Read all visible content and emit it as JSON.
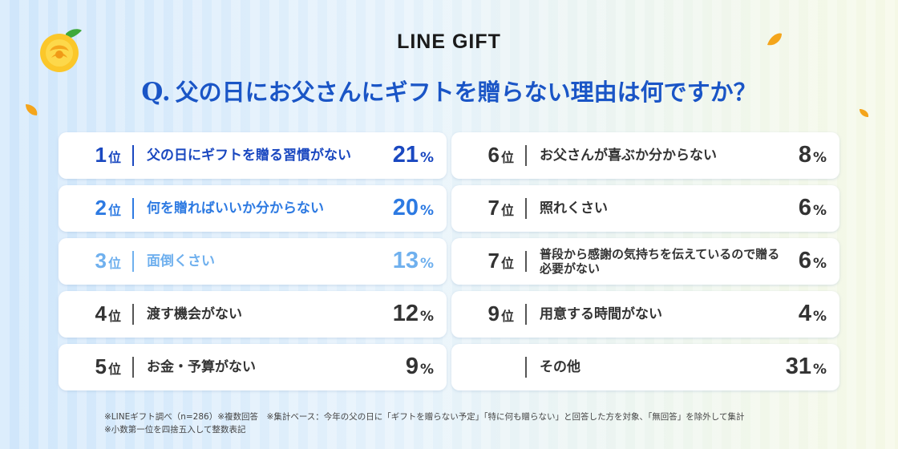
{
  "brand": "LINE GIFT",
  "question": {
    "prefix": "Q.",
    "text": "父の日にお父さんにギフトを贈らない理由は何ですか？"
  },
  "colors": {
    "rank1": "#1a48c0",
    "rank2": "#2d7ae2",
    "rank3": "#6fb0ee",
    "default": "#333333",
    "accent_orange": "#f4a51c"
  },
  "rank_suffix": "位",
  "percent_sign": "%",
  "chart_data": {
    "type": "table",
    "title": "Q.父の日にお父さんにギフトを贈らない理由は何ですか？",
    "rows": [
      {
        "rank": "1",
        "label": "父の日にギフトを贈る習慣がない",
        "value": "21"
      },
      {
        "rank": "2",
        "label": "何を贈ればいいか分からない",
        "value": "20"
      },
      {
        "rank": "3",
        "label": "面倒くさい",
        "value": "13"
      },
      {
        "rank": "4",
        "label": "渡す機会がない",
        "value": "12"
      },
      {
        "rank": "5",
        "label": "お金・予算がない",
        "value": "9"
      },
      {
        "rank": "6",
        "label": "お父さんが喜ぶか分からない",
        "value": "8"
      },
      {
        "rank": "7",
        "label": "照れくさい",
        "value": "6"
      },
      {
        "rank": "7",
        "label": "普段から感謝の気持ちを伝えているので贈る必要がない",
        "value": "6"
      },
      {
        "rank": "9",
        "label": "用意する時間がない",
        "value": "4"
      },
      {
        "rank": "",
        "label": "その他",
        "value": "31"
      }
    ]
  },
  "notes": {
    "line1": "※LINEギフト調べ（n=286）※複数回答　※集計ベース：今年の父の日に「ギフトを贈らない予定」「特に何も贈らない」と回答した方を対象、「無回答」を除外して集計",
    "line2": "※小数第一位を四捨五入して整数表記"
  },
  "decorations": [
    "rose-icon",
    "petal-icon"
  ]
}
